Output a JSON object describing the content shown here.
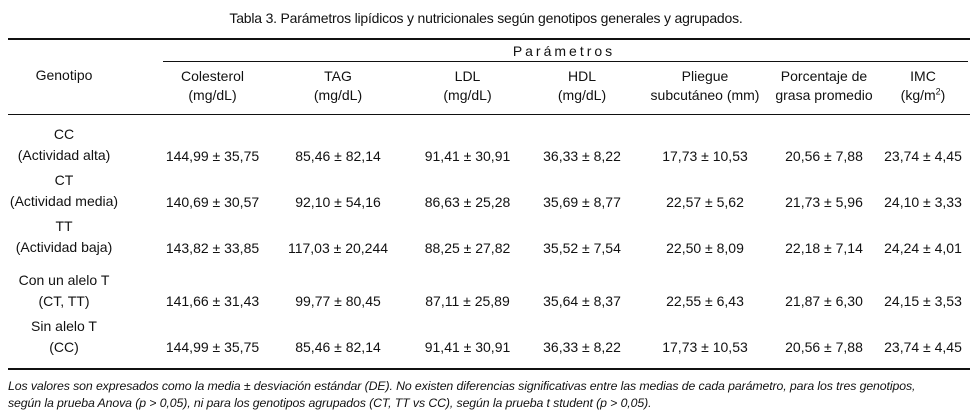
{
  "caption": "Tabla 3. Parámetros lipídicos y nutricionales según genotipos generales y agrupados.",
  "parametros_title": "Parámetros",
  "genotipo_header": "Genotipo",
  "columns": [
    {
      "line1": "Colesterol",
      "line2": "(mg/dL)"
    },
    {
      "line1": "TAG",
      "line2": "(mg/dL)"
    },
    {
      "line1": "LDL",
      "line2": "(mg/dL)"
    },
    {
      "line1": "HDL",
      "line2": "(mg/dL)"
    },
    {
      "line1": "Pliegue",
      "line2": "subcutáneo (mm)"
    },
    {
      "line1": "Porcentaje de",
      "line2": "grasa promedio"
    },
    {
      "line1": "IMC",
      "line2": "(kg/m",
      "sup": "2",
      "line2_end": ")"
    }
  ],
  "rows": [
    {
      "label1": "CC",
      "label2": "(Actividad alta)",
      "values": [
        "144,99 ± 35,75",
        "85,46 ± 82,14",
        "91,41 ± 30,91",
        "36,33 ± 8,22",
        "17,73 ± 10,53",
        "20,56 ± 7,88",
        "23,74 ± 4,45"
      ]
    },
    {
      "label1": "CT",
      "label2": "(Actividad media)",
      "values": [
        "140,69 ± 30,57",
        "92,10 ± 54,16",
        "86,63 ± 25,28",
        "35,69 ± 8,77",
        "22,57 ± 5,62",
        "21,73 ± 5,96",
        "24,10 ± 3,33"
      ]
    },
    {
      "label1": "TT",
      "label2": "(Actividad baja)",
      "values": [
        "143,82 ± 33,85",
        "117,03 ± 20,244",
        "88,25 ± 27,82",
        "35,52 ± 7,54",
        "22,50 ± 8,09",
        "22,18 ± 7,14",
        "24,24 ± 4,01"
      ]
    },
    {
      "label1": "Con un alelo T",
      "label2": "(CT, TT)",
      "values": [
        "141,66 ± 31,43",
        "99,77 ± 80,45",
        "87,11 ± 25,89",
        "35,64 ± 8,37",
        "22,55 ± 6,43",
        "21,87 ± 6,30",
        "24,15 ± 3,53"
      ]
    },
    {
      "label1": "Sin alelo T",
      "label2": "(CC)",
      "values": [
        "144,99 ± 35,75",
        "85,46 ± 82,14",
        "91,41 ± 30,91",
        "36,33 ± 8,22",
        "17,73 ± 10,53",
        "20,56 ± 7,88",
        "23,74 ± 4,45"
      ]
    }
  ],
  "footnote": {
    "line1": "Los valores son expresados como la media ± desviación estándar (DE). No existen diferencias significativas entre las medias de cada parámetro, para los tres genotipos,",
    "line2": "según la prueba Anova (p > 0,05), ni para los genotipos agrupados (CT, TT vs CC), según la prueba t student (p > 0,05)."
  }
}
